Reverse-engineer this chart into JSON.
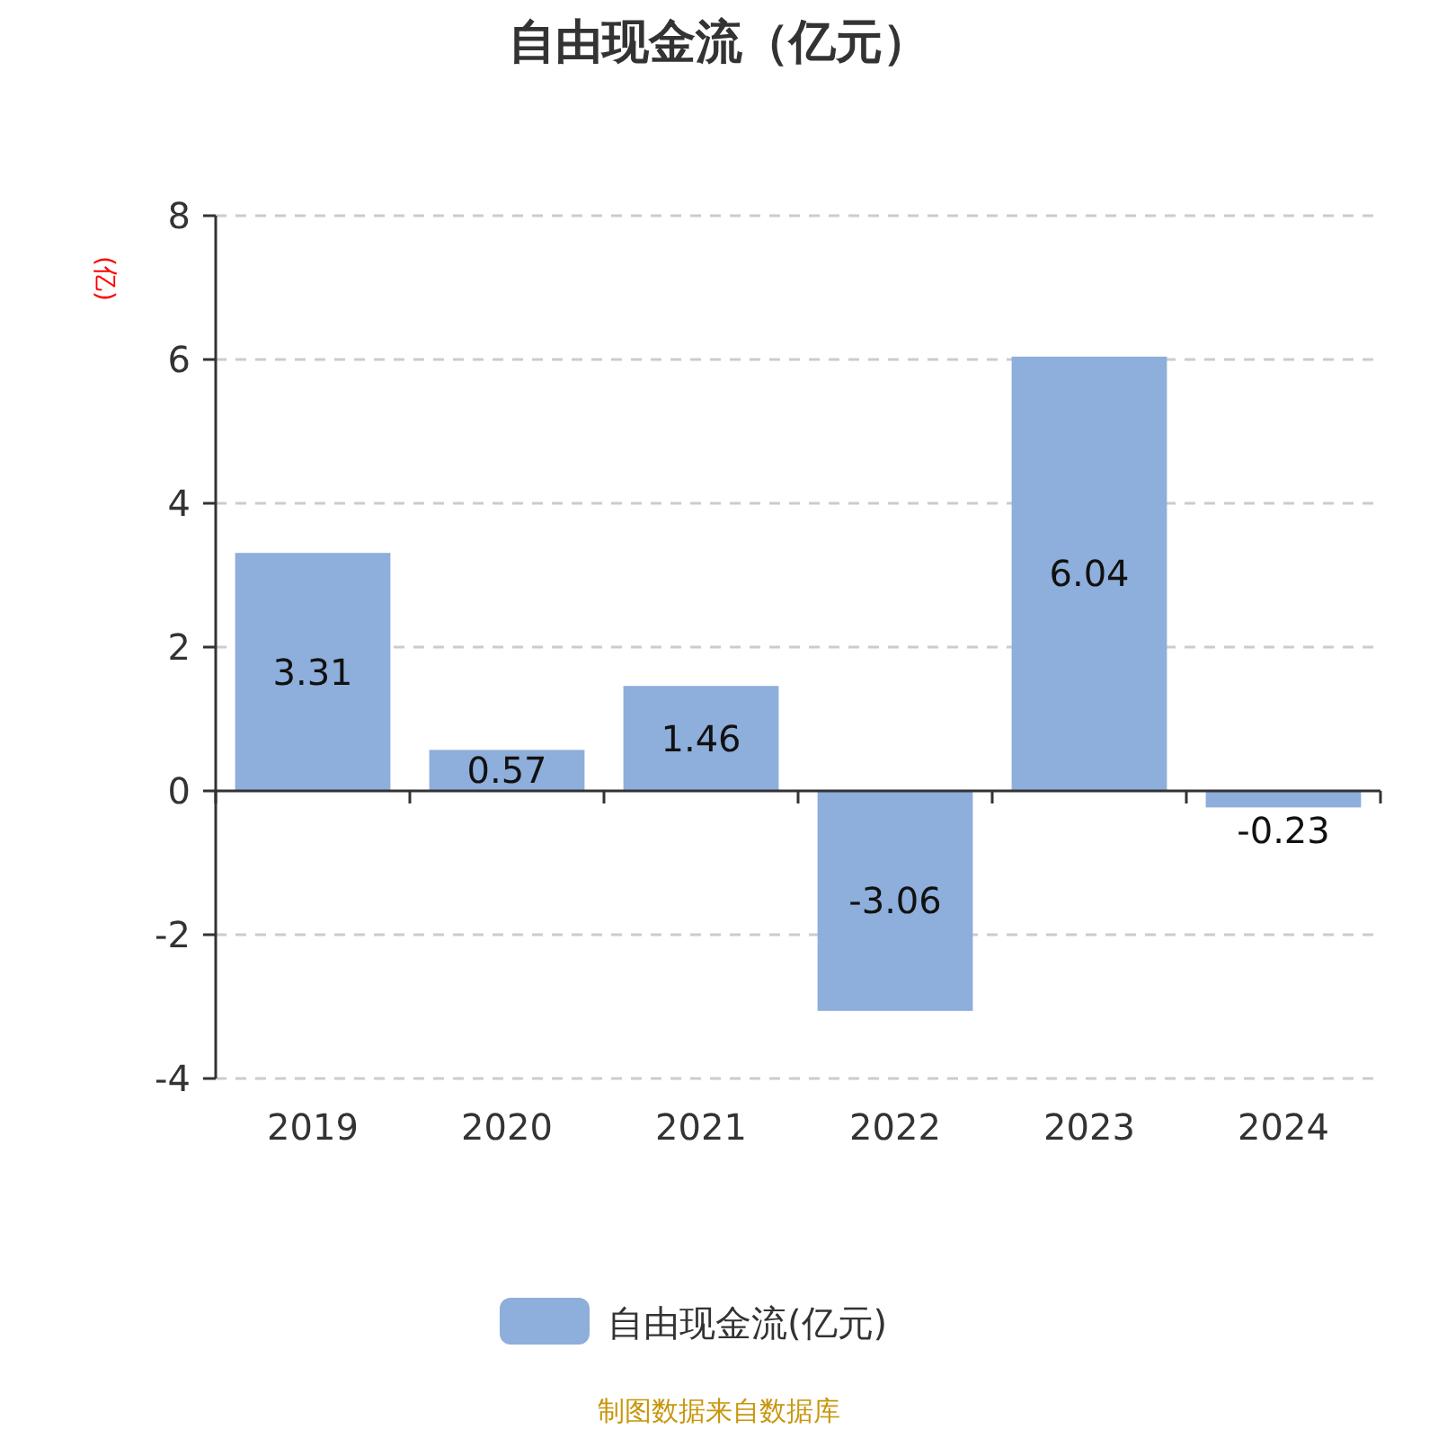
{
  "chart_data": {
    "type": "bar",
    "title": "自由现金流（亿元）",
    "ylabel": "(亿)",
    "categories": [
      "2019",
      "2020",
      "2021",
      "2022",
      "2023",
      "2024"
    ],
    "series": [
      {
        "name": "自由现金流(亿元)",
        "color": "#8eaedb",
        "values": [
          3.31,
          0.57,
          1.46,
          -3.06,
          6.04,
          -0.23
        ]
      }
    ],
    "ylim": [
      -4,
      8
    ],
    "yticks": [
      -4,
      -2,
      0,
      2,
      4,
      6,
      8
    ],
    "grid": "y",
    "legend": "bottom",
    "data_labels": true,
    "annotations": [
      "制图数据来自数据库"
    ]
  }
}
